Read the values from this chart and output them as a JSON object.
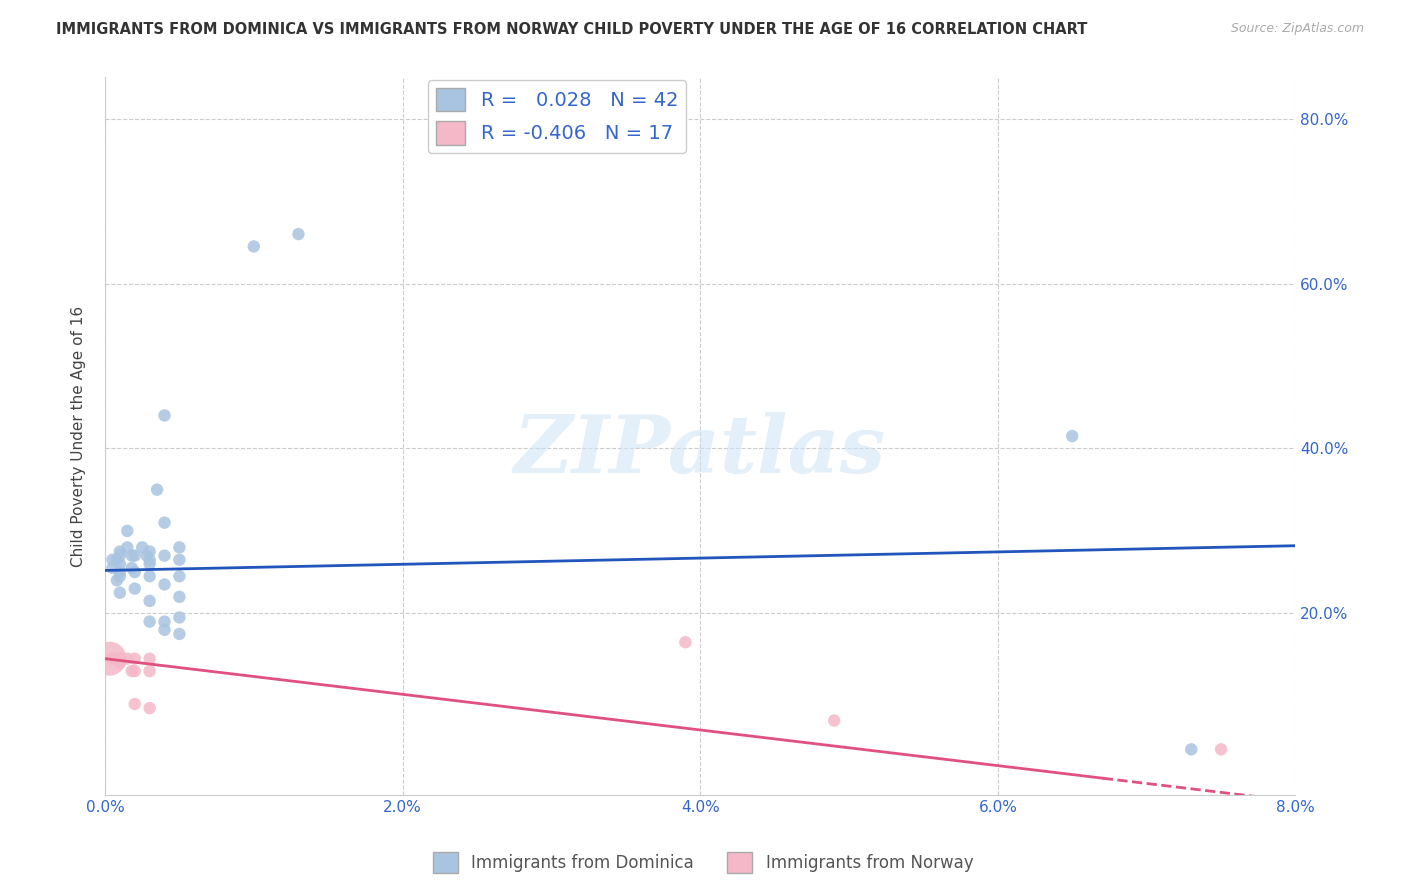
{
  "title": "IMMIGRANTS FROM DOMINICA VS IMMIGRANTS FROM NORWAY CHILD POVERTY UNDER THE AGE OF 16 CORRELATION CHART",
  "source": "Source: ZipAtlas.com",
  "ylabel": "Child Poverty Under the Age of 16",
  "xlim": [
    0.0,
    0.08
  ],
  "ylim": [
    -0.02,
    0.85
  ],
  "xticks": [
    0.0,
    0.02,
    0.04,
    0.06,
    0.08
  ],
  "yticks": [
    0.2,
    0.4,
    0.6,
    0.8
  ],
  "ytick_labels": [
    "20.0%",
    "40.0%",
    "60.0%",
    "80.0%"
  ],
  "xtick_labels": [
    "0.0%",
    "2.0%",
    "4.0%",
    "6.0%",
    "8.0%"
  ],
  "blue_R": 0.028,
  "blue_N": 42,
  "pink_R": -0.406,
  "pink_N": 17,
  "legend_label_blue": "Immigrants from Dominica",
  "legend_label_pink": "Immigrants from Norway",
  "blue_color": "#a8c4e0",
  "pink_color": "#f4b8c8",
  "blue_line_color": "#2255bb",
  "pink_line_color": "#e05080",
  "watermark": "ZIPatlas",
  "blue_dots": [
    [
      0.0005,
      0.265
    ],
    [
      0.0005,
      0.255
    ],
    [
      0.0008,
      0.265
    ],
    [
      0.0008,
      0.24
    ],
    [
      0.001,
      0.275
    ],
    [
      0.001,
      0.27
    ],
    [
      0.001,
      0.26
    ],
    [
      0.001,
      0.25
    ],
    [
      0.001,
      0.245
    ],
    [
      0.001,
      0.225
    ],
    [
      0.0015,
      0.3
    ],
    [
      0.0015,
      0.28
    ],
    [
      0.0018,
      0.27
    ],
    [
      0.0018,
      0.255
    ],
    [
      0.002,
      0.27
    ],
    [
      0.002,
      0.25
    ],
    [
      0.002,
      0.23
    ],
    [
      0.0025,
      0.28
    ],
    [
      0.0028,
      0.27
    ],
    [
      0.003,
      0.275
    ],
    [
      0.003,
      0.265
    ],
    [
      0.003,
      0.26
    ],
    [
      0.003,
      0.245
    ],
    [
      0.003,
      0.215
    ],
    [
      0.003,
      0.19
    ],
    [
      0.0035,
      0.35
    ],
    [
      0.004,
      0.44
    ],
    [
      0.004,
      0.31
    ],
    [
      0.004,
      0.27
    ],
    [
      0.004,
      0.235
    ],
    [
      0.004,
      0.19
    ],
    [
      0.004,
      0.18
    ],
    [
      0.005,
      0.28
    ],
    [
      0.005,
      0.265
    ],
    [
      0.005,
      0.245
    ],
    [
      0.005,
      0.22
    ],
    [
      0.005,
      0.195
    ],
    [
      0.005,
      0.175
    ],
    [
      0.01,
      0.645
    ],
    [
      0.013,
      0.66
    ],
    [
      0.065,
      0.415
    ],
    [
      0.073,
      0.035
    ]
  ],
  "pink_dots": [
    [
      0.0003,
      0.145
    ],
    [
      0.0005,
      0.145
    ],
    [
      0.0005,
      0.145
    ],
    [
      0.0008,
      0.145
    ],
    [
      0.001,
      0.145
    ],
    [
      0.001,
      0.14
    ],
    [
      0.0015,
      0.145
    ],
    [
      0.0018,
      0.13
    ],
    [
      0.002,
      0.145
    ],
    [
      0.002,
      0.13
    ],
    [
      0.002,
      0.09
    ],
    [
      0.003,
      0.145
    ],
    [
      0.003,
      0.13
    ],
    [
      0.003,
      0.085
    ],
    [
      0.039,
      0.165
    ],
    [
      0.049,
      0.07
    ],
    [
      0.075,
      0.035
    ]
  ],
  "pink_dot_sizes": [
    600,
    80,
    80,
    80,
    80,
    80,
    80,
    80,
    80,
    80,
    80,
    80,
    80,
    80,
    80,
    80,
    80
  ],
  "blue_line_x0": 0.0,
  "blue_line_y0": 0.252,
  "blue_line_x1": 0.08,
  "blue_line_y1": 0.282,
  "pink_line_x0": 0.0,
  "pink_line_y0": 0.145,
  "pink_line_x1": 0.08,
  "pink_line_y1": -0.028
}
